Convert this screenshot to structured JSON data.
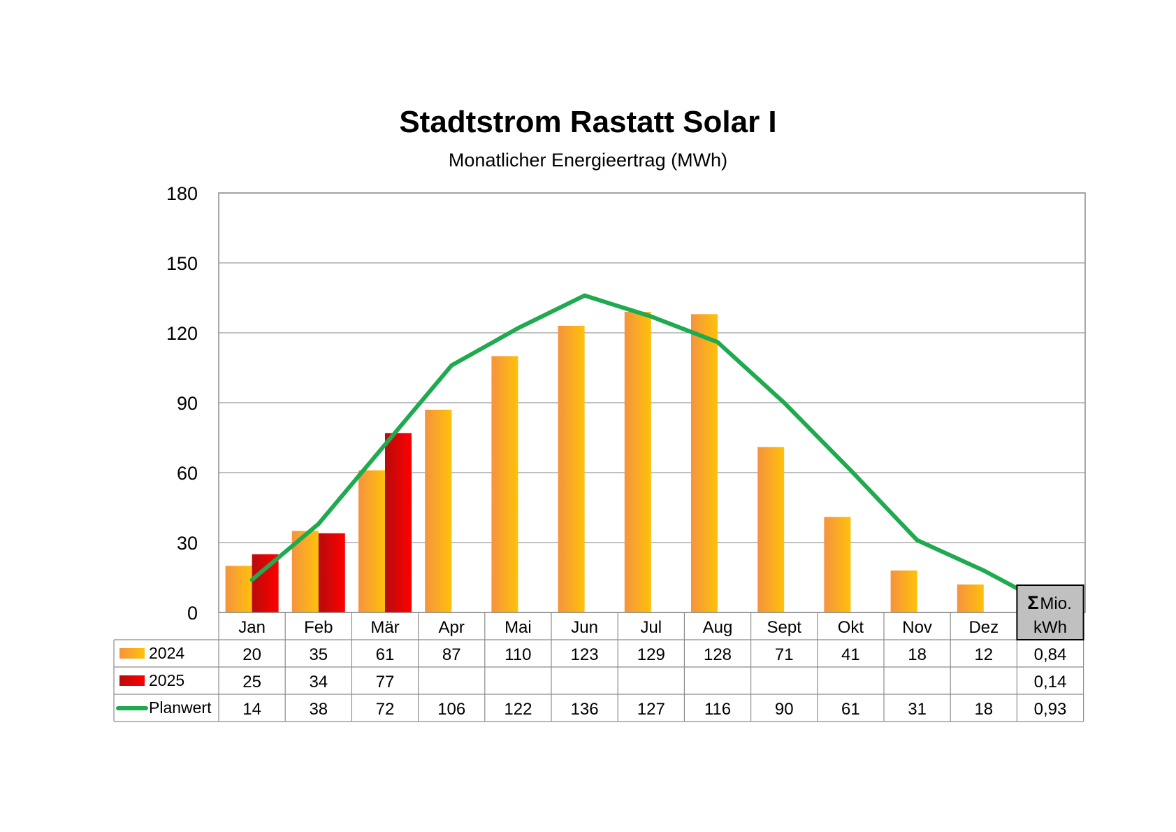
{
  "chart_data": {
    "type": "bar",
    "title": "Stadtstrom Rastatt Solar I",
    "subtitle": "Monatlicher Energieertrag (MWh)",
    "categories": [
      "Jan",
      "Feb",
      "Mär",
      "Apr",
      "Mai",
      "Jun",
      "Jul",
      "Aug",
      "Sept",
      "Okt",
      "Nov",
      "Dez"
    ],
    "ylim": [
      0,
      180
    ],
    "yticks": [
      0,
      30,
      60,
      90,
      120,
      150,
      180
    ],
    "grid": true,
    "series": [
      {
        "name": "2024",
        "kind": "bar",
        "color": "#f7a13c",
        "values": [
          20,
          35,
          61,
          87,
          110,
          123,
          129,
          128,
          71,
          41,
          18,
          12
        ]
      },
      {
        "name": "2025",
        "kind": "bar",
        "color": "#d40000",
        "values": [
          25,
          34,
          77,
          null,
          null,
          null,
          null,
          null,
          null,
          null,
          null,
          null
        ]
      },
      {
        "name": "Planwert",
        "kind": "line",
        "color": "#1faa50",
        "values": [
          14,
          38,
          72,
          106,
          122,
          136,
          127,
          116,
          90,
          61,
          31,
          18
        ]
      }
    ],
    "table": {
      "sum_header_symbol": "Σ",
      "sum_header_line1": "Mio.",
      "sum_header_line2": "kWh",
      "rows": [
        {
          "label": "2024",
          "display": [
            "20",
            "35",
            "61",
            "87",
            "110",
            "123",
            "129",
            "128",
            "71",
            "41",
            "18",
            "12"
          ],
          "sum": "0,84"
        },
        {
          "label": "2025",
          "display": [
            "25",
            "34",
            "77",
            "",
            "",
            "",
            "",
            "",
            "",
            "",
            "",
            ""
          ],
          "sum": "0,14"
        },
        {
          "label": "Planwert",
          "display": [
            "14",
            "38",
            "72",
            "106",
            "122",
            "136",
            "127",
            "116",
            "90",
            "61",
            "31",
            "18"
          ],
          "sum": "0,93"
        }
      ]
    }
  }
}
